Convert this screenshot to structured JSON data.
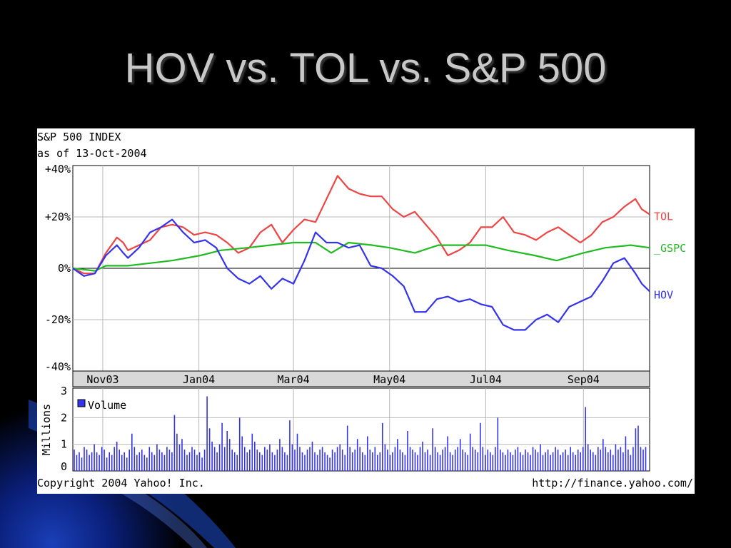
{
  "slide": {
    "title": "HOV vs. TOL vs. S&P 500"
  },
  "chart_header": {
    "line1": "S&P 500 INDEX",
    "line2": "as of 13-Oct-2004"
  },
  "footer": {
    "copyright": "Copyright 2004 Yahoo! Inc.",
    "url": "http://finance.yahoo.com/"
  },
  "chart_data": [
    {
      "type": "line",
      "ylim": [
        -40,
        40
      ],
      "y_ticks": [
        {
          "value": 40,
          "label": "+40%"
        },
        {
          "value": 20,
          "label": "+20%"
        },
        {
          "value": 0,
          "label": "0%"
        },
        {
          "value": -20,
          "label": "-20%"
        },
        {
          "value": -40,
          "label": "-40%"
        }
      ],
      "x_ticks": [
        {
          "date": "2003-11-01",
          "label": "Nov03"
        },
        {
          "date": "2004-01-01",
          "label": "Jan04"
        },
        {
          "date": "2004-03-01",
          "label": "Mar04"
        },
        {
          "date": "2004-05-01",
          "label": "May04"
        },
        {
          "date": "2004-07-01",
          "label": "Jul04"
        },
        {
          "date": "2004-09-01",
          "label": "Sep04"
        }
      ],
      "x_range": [
        "2003-10-13",
        "2004-10-13"
      ],
      "grid": true,
      "series": [
        {
          "name": "TOL",
          "color": "#ee4444",
          "points": [
            [
              "2003-10-13",
              0
            ],
            [
              "2003-10-20",
              -2
            ],
            [
              "2003-10-27",
              -2
            ],
            [
              "2003-11-03",
              6
            ],
            [
              "2003-11-10",
              12
            ],
            [
              "2003-11-14",
              10
            ],
            [
              "2003-11-17",
              7
            ],
            [
              "2003-11-24",
              9
            ],
            [
              "2003-12-01",
              11
            ],
            [
              "2003-12-08",
              16
            ],
            [
              "2003-12-15",
              17
            ],
            [
              "2003-12-22",
              16
            ],
            [
              "2003-12-29",
              13
            ],
            [
              "2004-01-05",
              14
            ],
            [
              "2004-01-12",
              13
            ],
            [
              "2004-01-19",
              10
            ],
            [
              "2004-01-26",
              6
            ],
            [
              "2004-02-02",
              8
            ],
            [
              "2004-02-09",
              14
            ],
            [
              "2004-02-16",
              17
            ],
            [
              "2004-02-23",
              10
            ],
            [
              "2004-03-01",
              15
            ],
            [
              "2004-03-08",
              19
            ],
            [
              "2004-03-15",
              18
            ],
            [
              "2004-03-22",
              27
            ],
            [
              "2004-03-29",
              36
            ],
            [
              "2004-04-05",
              31
            ],
            [
              "2004-04-12",
              29
            ],
            [
              "2004-04-19",
              28
            ],
            [
              "2004-04-26",
              28
            ],
            [
              "2004-05-03",
              23
            ],
            [
              "2004-05-10",
              20
            ],
            [
              "2004-05-17",
              22
            ],
            [
              "2004-05-24",
              17
            ],
            [
              "2004-05-31",
              12
            ],
            [
              "2004-06-07",
              5
            ],
            [
              "2004-06-14",
              7
            ],
            [
              "2004-06-21",
              10
            ],
            [
              "2004-06-28",
              16
            ],
            [
              "2004-07-05",
              16
            ],
            [
              "2004-07-12",
              20
            ],
            [
              "2004-07-19",
              14
            ],
            [
              "2004-07-26",
              13
            ],
            [
              "2004-08-02",
              11
            ],
            [
              "2004-08-09",
              14
            ],
            [
              "2004-08-16",
              16
            ],
            [
              "2004-08-23",
              13
            ],
            [
              "2004-08-30",
              10
            ],
            [
              "2004-09-06",
              13
            ],
            [
              "2004-09-13",
              18
            ],
            [
              "2004-09-20",
              20
            ],
            [
              "2004-09-27",
              24
            ],
            [
              "2004-10-04",
              27
            ],
            [
              "2004-10-08",
              23
            ],
            [
              "2004-10-13",
              21
            ]
          ]
        },
        {
          "name": "_GSPC",
          "color": "#22bb22",
          "points": [
            [
              "2003-10-13",
              0
            ],
            [
              "2003-10-27",
              -1
            ],
            [
              "2003-11-03",
              1
            ],
            [
              "2003-11-17",
              1
            ],
            [
              "2003-12-01",
              2
            ],
            [
              "2003-12-15",
              3
            ],
            [
              "2004-01-02",
              5
            ],
            [
              "2004-01-15",
              7
            ],
            [
              "2004-02-01",
              8
            ],
            [
              "2004-02-15",
              9
            ],
            [
              "2004-03-01",
              10
            ],
            [
              "2004-03-15",
              10
            ],
            [
              "2004-03-25",
              6
            ],
            [
              "2004-04-05",
              10
            ],
            [
              "2004-04-20",
              9
            ],
            [
              "2004-05-01",
              8
            ],
            [
              "2004-05-17",
              6
            ],
            [
              "2004-06-01",
              9
            ],
            [
              "2004-06-15",
              9
            ],
            [
              "2004-07-01",
              9
            ],
            [
              "2004-07-15",
              7
            ],
            [
              "2004-08-01",
              5
            ],
            [
              "2004-08-15",
              3
            ],
            [
              "2004-09-01",
              6
            ],
            [
              "2004-09-15",
              8
            ],
            [
              "2004-10-01",
              9
            ],
            [
              "2004-10-13",
              8
            ]
          ]
        },
        {
          "name": "HOV",
          "color": "#3333ee",
          "points": [
            [
              "2003-10-13",
              0
            ],
            [
              "2003-10-20",
              -3
            ],
            [
              "2003-10-27",
              -2
            ],
            [
              "2003-11-03",
              5
            ],
            [
              "2003-11-10",
              9
            ],
            [
              "2003-11-14",
              6
            ],
            [
              "2003-11-17",
              4
            ],
            [
              "2003-11-24",
              8
            ],
            [
              "2003-12-01",
              14
            ],
            [
              "2003-12-08",
              16
            ],
            [
              "2003-12-15",
              19
            ],
            [
              "2003-12-22",
              14
            ],
            [
              "2003-12-29",
              10
            ],
            [
              "2004-01-05",
              11
            ],
            [
              "2004-01-12",
              8
            ],
            [
              "2004-01-19",
              0
            ],
            [
              "2004-01-26",
              -4
            ],
            [
              "2004-02-02",
              -6
            ],
            [
              "2004-02-09",
              -3
            ],
            [
              "2004-02-16",
              -8
            ],
            [
              "2004-02-23",
              -4
            ],
            [
              "2004-03-01",
              -6
            ],
            [
              "2004-03-08",
              3
            ],
            [
              "2004-03-15",
              14
            ],
            [
              "2004-03-22",
              10
            ],
            [
              "2004-03-29",
              10
            ],
            [
              "2004-04-05",
              8
            ],
            [
              "2004-04-12",
              9
            ],
            [
              "2004-04-19",
              1
            ],
            [
              "2004-04-26",
              0
            ],
            [
              "2004-05-03",
              -3
            ],
            [
              "2004-05-10",
              -7
            ],
            [
              "2004-05-17",
              -17
            ],
            [
              "2004-05-24",
              -17
            ],
            [
              "2004-05-31",
              -12
            ],
            [
              "2004-06-07",
              -11
            ],
            [
              "2004-06-14",
              -13
            ],
            [
              "2004-06-21",
              -12
            ],
            [
              "2004-06-28",
              -14
            ],
            [
              "2004-07-05",
              -15
            ],
            [
              "2004-07-12",
              -22
            ],
            [
              "2004-07-19",
              -24
            ],
            [
              "2004-07-26",
              -24
            ],
            [
              "2004-08-02",
              -20
            ],
            [
              "2004-08-09",
              -18
            ],
            [
              "2004-08-16",
              -21
            ],
            [
              "2004-08-23",
              -15
            ],
            [
              "2004-08-30",
              -13
            ],
            [
              "2004-09-06",
              -11
            ],
            [
              "2004-09-13",
              -5
            ],
            [
              "2004-09-20",
              2
            ],
            [
              "2004-09-27",
              4
            ],
            [
              "2004-10-04",
              -2
            ],
            [
              "2004-10-08",
              -6
            ],
            [
              "2004-10-13",
              -9
            ]
          ]
        }
      ]
    },
    {
      "type": "bar",
      "ylabel": "Millions",
      "ylim": [
        0,
        3
      ],
      "y_ticks": [
        {
          "value": 3,
          "label": "3"
        },
        {
          "value": 2,
          "label": "2"
        },
        {
          "value": 1,
          "label": "1"
        },
        {
          "value": 0,
          "label": "0"
        }
      ],
      "legend": {
        "label": "Volume",
        "color": "#3333ee",
        "position": "top-left"
      },
      "series": [
        {
          "name": "Volume",
          "color": "#3333ee",
          "values": [
            0.8,
            0.6,
            0.7,
            0.5,
            0.9,
            0.8,
            0.6,
            0.7,
            1.0,
            0.7,
            0.6,
            0.9,
            0.8,
            0.5,
            0.7,
            0.6,
            0.9,
            1.1,
            0.8,
            0.6,
            0.7,
            0.5,
            0.8,
            1.4,
            0.9,
            0.6,
            0.7,
            0.8,
            0.6,
            0.5,
            0.9,
            0.7,
            0.6,
            1.0,
            0.8,
            0.7,
            0.6,
            0.9,
            0.8,
            0.7,
            2.1,
            1.4,
            1.0,
            1.2,
            0.8,
            0.6,
            0.7,
            0.9,
            0.8,
            0.6,
            0.7,
            0.5,
            0.8,
            2.8,
            1.6,
            1.1,
            0.9,
            0.7,
            1.0,
            1.8,
            0.9,
            1.5,
            1.2,
            0.8,
            0.7,
            0.6,
            2.0,
            1.3,
            0.9,
            0.7,
            0.8,
            1.4,
            1.1,
            0.8,
            0.7,
            0.6,
            0.9,
            0.8,
            1.0,
            0.7,
            0.6,
            0.8,
            1.2,
            0.9,
            0.7,
            0.6,
            1.9,
            1.0,
            0.8,
            1.4,
            0.9,
            0.7,
            0.6,
            0.8,
            0.9,
            1.1,
            0.7,
            0.6,
            0.8,
            0.9,
            0.7,
            0.6,
            0.5,
            0.8,
            0.7,
            0.9,
            1.0,
            0.8,
            0.6,
            1.7,
            0.9,
            0.7,
            0.8,
            1.2,
            0.9,
            0.7,
            0.6,
            1.3,
            0.8,
            0.7,
            0.9,
            0.6,
            0.7,
            1.8,
            1.0,
            0.8,
            0.6,
            0.7,
            0.9,
            1.2,
            0.8,
            0.7,
            0.6,
            1.5,
            0.9,
            0.8,
            0.7,
            0.6,
            0.9,
            1.1,
            0.7,
            0.8,
            0.6,
            1.6,
            0.9,
            0.7,
            0.6,
            0.8,
            0.9,
            1.3,
            0.7,
            0.6,
            0.8,
            0.9,
            1.2,
            0.8,
            0.7,
            0.6,
            1.4,
            0.9,
            0.8,
            0.7,
            1.8,
            0.9,
            0.6,
            0.8,
            0.7,
            0.6,
            0.9,
            2.0,
            0.8,
            0.7,
            0.6,
            0.8,
            0.7,
            0.6,
            0.8,
            0.9,
            0.7,
            0.6,
            0.8,
            0.7,
            0.6,
            0.9,
            0.8,
            0.7,
            1.0,
            0.6,
            0.7,
            0.8,
            0.6,
            0.7,
            0.9,
            0.8,
            0.6,
            0.7,
            0.8,
            0.6,
            0.9,
            0.7,
            0.6,
            0.8,
            0.7,
            0.9,
            2.4,
            1.0,
            0.8,
            0.7,
            0.6,
            0.9,
            0.8,
            1.2,
            0.9,
            0.7,
            0.8,
            0.6,
            1.0,
            0.8,
            0.9,
            0.7,
            1.3,
            0.8,
            0.6,
            0.9,
            1.6,
            1.7,
            0.9,
            0.8,
            0.9
          ]
        }
      ]
    }
  ]
}
